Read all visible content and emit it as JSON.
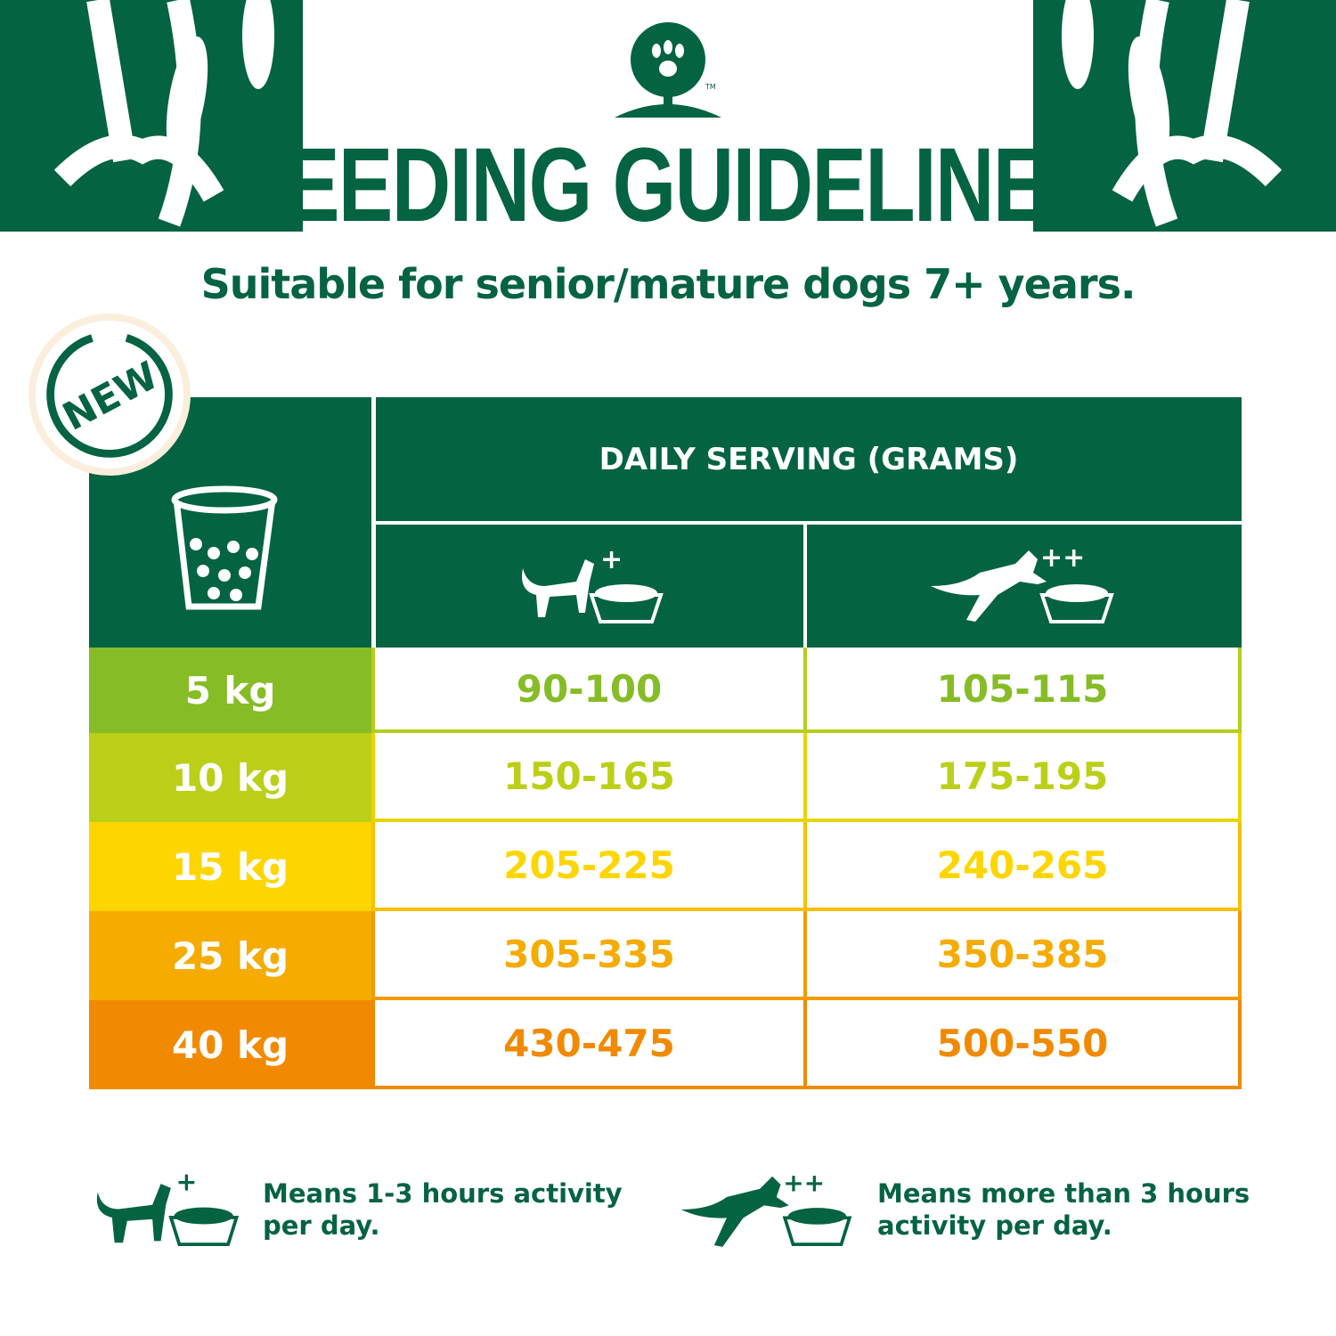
{
  "header": {
    "title": "FEEDING GUIDELINES",
    "subtitle": "Suitable for senior/mature dogs 7+ years.",
    "badge": "NEW",
    "logo_tm": "TM"
  },
  "colors": {
    "brand": "#046341",
    "5kg": "#86bc25",
    "10kg": "#bccf18",
    "15kg": "#fdd500",
    "25kg": "#f5ab00",
    "40kg": "#f18a00"
  },
  "table": {
    "header": "DAILY SERVING (GRAMS)",
    "columns": [
      {
        "icon": "dog-sitting-bowl-icon",
        "marker": "+"
      },
      {
        "icon": "dog-jumping-bowl-icon",
        "marker": "++"
      }
    ],
    "rows": [
      {
        "weight": "5 kg",
        "moderate": "90-100",
        "active": "105-115",
        "color": "#86bc25"
      },
      {
        "weight": "10 kg",
        "moderate": "150-165",
        "active": "175-195",
        "color": "#bccf18"
      },
      {
        "weight": "15 kg",
        "moderate": "205-225",
        "active": "240-265",
        "color": "#fdd500"
      },
      {
        "weight": "25 kg",
        "moderate": "305-335",
        "active": "350-385",
        "color": "#f5ab00"
      },
      {
        "weight": "40 kg",
        "moderate": "430-475",
        "active": "500-550",
        "color": "#f18a00"
      }
    ]
  },
  "legend": [
    {
      "marker": "+",
      "text": "Means 1-3 hours activity per day."
    },
    {
      "marker": "++",
      "text": "Means more than 3 hours activity per day."
    }
  ]
}
